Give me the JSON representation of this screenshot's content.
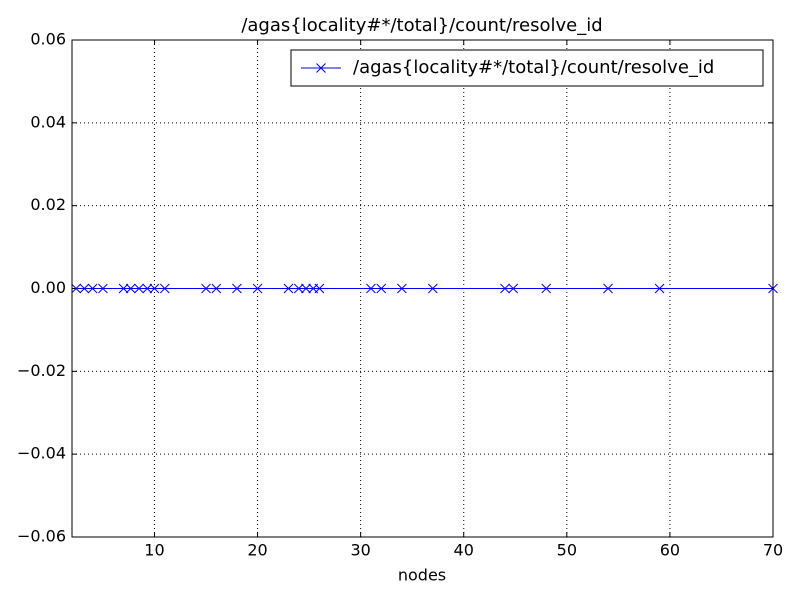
{
  "chart_data": {
    "type": "line",
    "title": "/agas{locality#*/total}/count/resolve_id",
    "x_label": "nodes",
    "x": [
      2.4,
      3.2,
      4,
      5,
      7,
      7.7,
      8.5,
      9.3,
      10,
      11,
      15,
      16,
      18,
      20,
      23,
      24,
      24.7,
      25.4,
      26,
      31,
      32,
      34,
      37,
      44,
      44.8,
      48,
      54,
      59,
      70
    ],
    "series": [
      {
        "name": "/agas{locality#*/total}/count/resolve_id",
        "color": "#0000ff",
        "marker": "x",
        "values": [
          0,
          0,
          0,
          0,
          0,
          0,
          0,
          0,
          0,
          0,
          0,
          0,
          0,
          0,
          0,
          0,
          0,
          0,
          0,
          0,
          0,
          0,
          0,
          0,
          0,
          0,
          0,
          0,
          0
        ]
      }
    ],
    "xlim": [
      2,
      70
    ],
    "xticks": [
      10,
      20,
      30,
      40,
      50,
      60,
      70
    ],
    "ylim": [
      -0.06,
      0.06
    ],
    "yticks": [
      {
        "value": -0.06,
        "label": "−0.06"
      },
      {
        "value": -0.04,
        "label": "−0.04"
      },
      {
        "value": -0.02,
        "label": "−0.02"
      },
      {
        "value": 0,
        "label": "0.00"
      },
      {
        "value": 0.02,
        "label": "0.02"
      },
      {
        "value": 0.04,
        "label": "0.04"
      },
      {
        "value": 0.06,
        "label": "0.06"
      }
    ],
    "grid": true,
    "legend": "upper right"
  }
}
